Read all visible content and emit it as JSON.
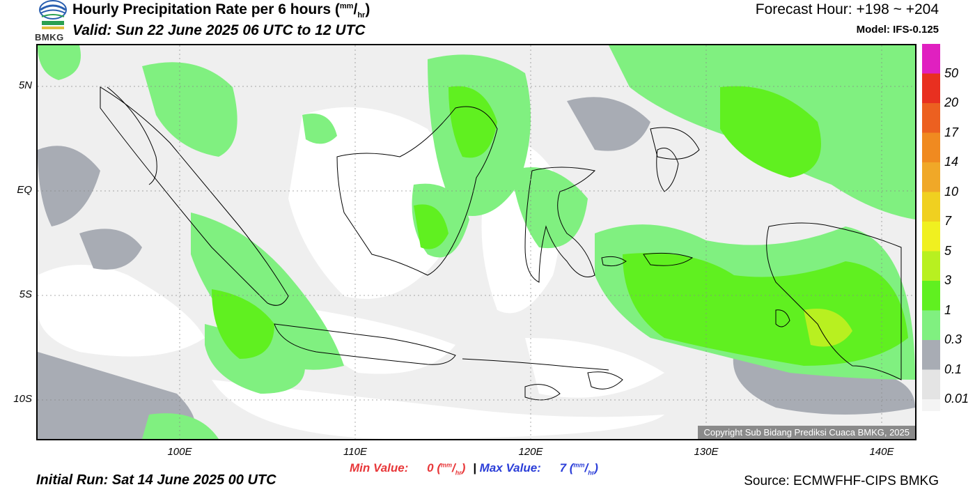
{
  "header": {
    "title_main": "Hourly Precipitation Rate per 6 hours (",
    "title_unit_num": "mm",
    "title_unit_slash": "/",
    "title_unit_den": "hr",
    "title_end": ")",
    "valid": "Valid: Sun 22 June 2025 06 UTC to 12 UTC",
    "forecast_hour": "Forecast Hour: +198 ~ +204",
    "model": "Model: IFS-0.125",
    "logo_text": "BMKG"
  },
  "axes": {
    "lat_labels": [
      "5N",
      "EQ",
      "5S",
      "10S"
    ],
    "lon_labels": [
      "100E",
      "110E",
      "120E",
      "130E",
      "140E"
    ]
  },
  "colorbar": {
    "labels": [
      "50",
      "20",
      "17",
      "14",
      "10",
      "7",
      "5",
      "3",
      "1",
      "0.3",
      "0.1",
      "0.01"
    ],
    "colors": [
      "#e020c0",
      "#e83020",
      "#ec6020",
      "#f08a20",
      "#f0a828",
      "#f0d020",
      "#f0f020",
      "#b8f020",
      "#60f020",
      "#80f080",
      "#a8acb4",
      "#e4e4e4"
    ]
  },
  "stats": {
    "min_label": "Min Value:",
    "min_value": "0",
    "max_label": "Max Value:",
    "max_value": "7",
    "unit_open": "(",
    "unit_num": "mm",
    "unit_slash": "/",
    "unit_den": "hr",
    "unit_close": ")",
    "separator": "|"
  },
  "footer": {
    "initial_run": "Initial Run: Sat 14 June 2025 00 UTC",
    "source": "Source: ECMWFHF-CIPS BMKG",
    "copyright": "Copyright Sub Bidang Prediksi Cuaca BMKG, 2025"
  }
}
